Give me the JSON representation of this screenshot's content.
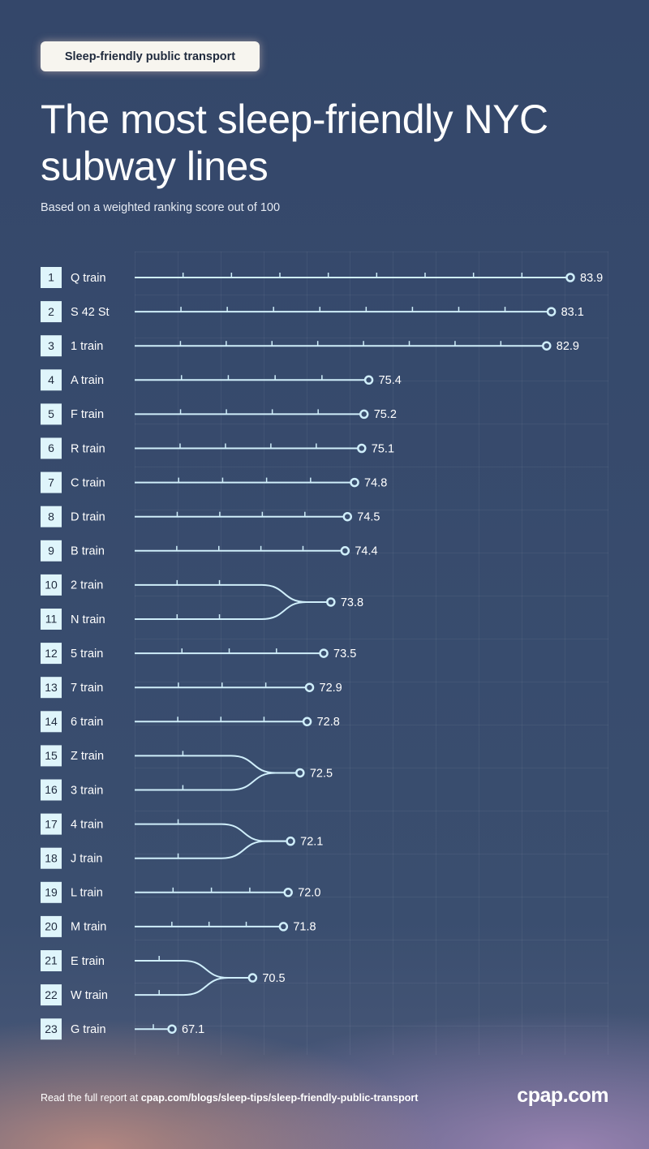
{
  "chart_data": {
    "type": "subway",
    "tag": "Sleep-friendly public transport",
    "title": "The most sleep-friendly NYC subway lines",
    "subtitle": "Based on a weighted ranking score out of 100",
    "color": "#cfeefa",
    "groups": [
      {
        "ranks": [
          1
        ],
        "names": [
          "Q train"
        ],
        "value": 83.9
      },
      {
        "ranks": [
          2
        ],
        "names": [
          "S 42 St"
        ],
        "value": 83.1
      },
      {
        "ranks": [
          3
        ],
        "names": [
          "1 train"
        ],
        "value": 82.9
      },
      {
        "ranks": [
          4
        ],
        "names": [
          "A train"
        ],
        "value": 75.4
      },
      {
        "ranks": [
          5
        ],
        "names": [
          "F train"
        ],
        "value": 75.2
      },
      {
        "ranks": [
          6
        ],
        "names": [
          "R train"
        ],
        "value": 75.1
      },
      {
        "ranks": [
          7
        ],
        "names": [
          "C train"
        ],
        "value": 74.8
      },
      {
        "ranks": [
          8
        ],
        "names": [
          "D train"
        ],
        "value": 74.5
      },
      {
        "ranks": [
          9
        ],
        "names": [
          "B train"
        ],
        "value": 74.4
      },
      {
        "ranks": [
          10,
          11
        ],
        "names": [
          "2 train",
          "N train"
        ],
        "value": 73.8
      },
      {
        "ranks": [
          12
        ],
        "names": [
          "5 train"
        ],
        "value": 73.5
      },
      {
        "ranks": [
          13
        ],
        "names": [
          "7 train"
        ],
        "value": 72.9
      },
      {
        "ranks": [
          14
        ],
        "names": [
          "6 train"
        ],
        "value": 72.8
      },
      {
        "ranks": [
          15,
          16
        ],
        "names": [
          "Z train",
          "3 train"
        ],
        "value": 72.5
      },
      {
        "ranks": [
          17,
          18
        ],
        "names": [
          "4 train",
          "J train"
        ],
        "value": 72.1
      },
      {
        "ranks": [
          19
        ],
        "names": [
          "L train"
        ],
        "value": 72.0,
        "value_label": "72.0"
      },
      {
        "ranks": [
          20
        ],
        "names": [
          "M train"
        ],
        "value": 71.8
      },
      {
        "ranks": [
          21,
          22
        ],
        "names": [
          "E train",
          "W train"
        ],
        "value": 70.5
      },
      {
        "ranks": [
          23
        ],
        "names": [
          "G train"
        ],
        "value": 67.1
      }
    ],
    "footer": {
      "text": "Read the full report at ",
      "link": "cpap.com/blogs/sleep-tips/sleep-friendly-public-transport"
    },
    "logo": "cpap.com"
  }
}
